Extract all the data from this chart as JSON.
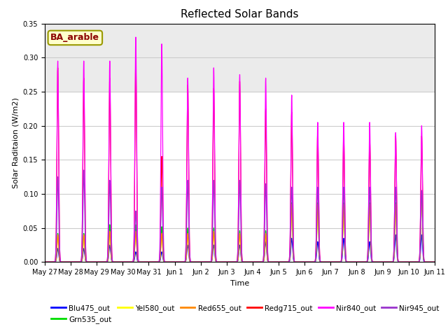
{
  "title": "Reflected Solar Bands",
  "xlabel": "Time",
  "ylabel": "Solar Raditaion (W/m2)",
  "ylim": [
    0,
    0.35
  ],
  "yticks": [
    0.0,
    0.05,
    0.1,
    0.15,
    0.2,
    0.25,
    0.3,
    0.35
  ],
  "annotation_text": "BA_arable",
  "fig_bg_color": "#ffffff",
  "plot_bg_color": "#ffffff",
  "series": [
    {
      "label": "Blu475_out",
      "color": "#0000ff"
    },
    {
      "label": "Grn535_out",
      "color": "#00dd00"
    },
    {
      "label": "Yel580_out",
      "color": "#ffff00"
    },
    {
      "label": "Red655_out",
      "color": "#ff8800"
    },
    {
      "label": "Redg715_out",
      "color": "#ff0000"
    },
    {
      "label": "Nir840_out",
      "color": "#ff00ff"
    },
    {
      "label": "Nir945_out",
      "color": "#9933cc"
    }
  ],
  "x_tick_labels": [
    "May 27",
    "May 28",
    "May 29",
    "May 30",
    "May 31",
    "Jun 1",
    "Jun 2",
    "Jun 3",
    "Jun 4",
    "Jun 5",
    "Jun 6",
    "Jun 7",
    "Jun 8",
    "Jun 9",
    "Jun 10",
    "Jun 11"
  ],
  "num_days": 15,
  "day_peak_nir840": [
    0.295,
    0.295,
    0.295,
    0.33,
    0.32,
    0.27,
    0.285,
    0.275,
    0.27,
    0.245,
    0.205,
    0.205,
    0.205,
    0.19,
    0.2
  ],
  "day_peak_nir945": [
    0.125,
    0.135,
    0.12,
    0.075,
    0.11,
    0.12,
    0.12,
    0.12,
    0.115,
    0.11,
    0.11,
    0.11,
    0.11,
    0.11,
    0.105
  ],
  "day_peak_redg715": [
    0.285,
    0.27,
    0.27,
    0.295,
    0.155,
    0.26,
    0.255,
    0.265,
    0.225,
    0.22,
    0.19,
    0.185,
    0.18,
    0.185,
    0.185
  ],
  "day_peak_red655": [
    0.04,
    0.04,
    0.045,
    0.045,
    0.042,
    0.042,
    0.045,
    0.042,
    0.042,
    0.085,
    0.085,
    0.085,
    0.085,
    0.085,
    0.105
  ],
  "day_peak_yel580": [
    0.038,
    0.038,
    0.043,
    0.043,
    0.04,
    0.04,
    0.042,
    0.04,
    0.04,
    0.075,
    0.075,
    0.075,
    0.075,
    0.08,
    0.095
  ],
  "day_peak_grn535": [
    0.042,
    0.042,
    0.055,
    0.055,
    0.052,
    0.05,
    0.05,
    0.046,
    0.046,
    0.087,
    0.087,
    0.087,
    0.087,
    0.087,
    0.097
  ],
  "day_peak_blu475": [
    0.02,
    0.02,
    0.025,
    0.015,
    0.015,
    0.025,
    0.025,
    0.025,
    0.03,
    0.035,
    0.03,
    0.035,
    0.03,
    0.04,
    0.04
  ],
  "sigma": 0.032,
  "pts_per_day": 300
}
